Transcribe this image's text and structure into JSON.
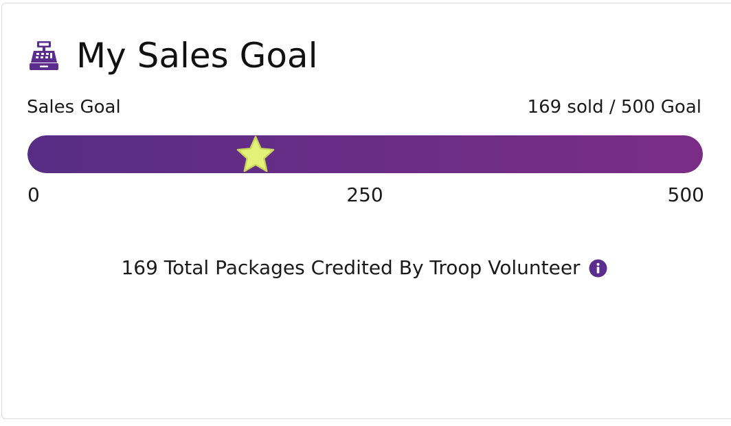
{
  "header": {
    "title": "My Sales Goal",
    "icon": "cash-register-icon"
  },
  "goal": {
    "label": "Sales Goal",
    "summary": "169 sold / 500 Goal",
    "sold": 169,
    "target": 500
  },
  "progress_bar": {
    "min_label": "0",
    "mid_label": "250",
    "max_label": "500",
    "marker_icon": "star-icon"
  },
  "credit": {
    "text": "169 Total Packages Credited By Troop Volunteer",
    "icon": "info-icon"
  },
  "colors": {
    "brand_purple": "#5a2d8f",
    "bar_start": "#582d85",
    "bar_end": "#7b2d86",
    "star_fill": "#e4f27a",
    "star_stroke": "#c7d85a"
  }
}
